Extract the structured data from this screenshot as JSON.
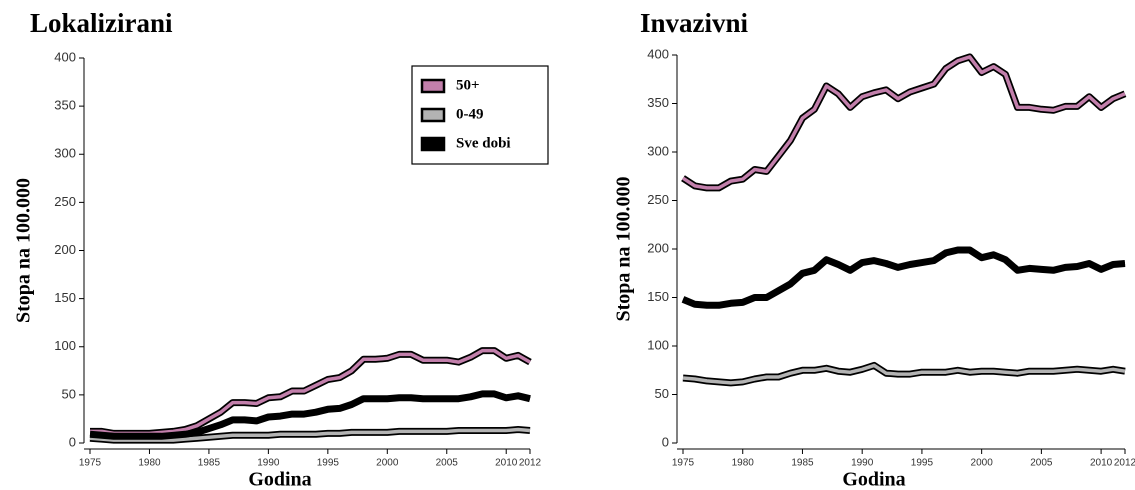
{
  "chart_data": [
    {
      "type": "line",
      "title": "Lokalizirani",
      "y_label": "Stopa na 100.000",
      "x_label": "Godina",
      "x": [
        1975,
        1976,
        1977,
        1978,
        1979,
        1980,
        1981,
        1982,
        1983,
        1984,
        1985,
        1986,
        1987,
        1988,
        1989,
        1990,
        1991,
        1992,
        1993,
        1994,
        1995,
        1996,
        1997,
        1998,
        1999,
        2000,
        2001,
        2002,
        2003,
        2004,
        2005,
        2006,
        2007,
        2008,
        2009,
        2010,
        2011,
        2012
      ],
      "xlim": [
        1975,
        2012
      ],
      "xticks": [
        1975,
        1980,
        1985,
        1990,
        1995,
        2000,
        2005,
        2010,
        2012
      ],
      "ylim": [
        0,
        400
      ],
      "yticks": [
        0,
        50,
        100,
        150,
        200,
        250,
        300,
        350,
        400
      ],
      "legend": "upper right",
      "series": [
        {
          "name": "50+",
          "color": "#c27fab",
          "values": [
            12,
            12,
            10,
            10,
            10,
            10,
            11,
            12,
            14,
            18,
            25,
            32,
            42,
            42,
            41,
            47,
            48,
            54,
            54,
            60,
            66,
            68,
            75,
            87,
            87,
            88,
            92,
            92,
            86,
            86,
            86,
            84,
            89,
            96,
            96,
            88,
            91,
            84
          ]
        },
        {
          "name": "0-49",
          "color": "#b3b3b3",
          "values": [
            5,
            4,
            3,
            3,
            3,
            3,
            3,
            3,
            4,
            5,
            6,
            7,
            8,
            8,
            8,
            8,
            9,
            9,
            9,
            9,
            10,
            10,
            11,
            11,
            11,
            11,
            12,
            12,
            12,
            12,
            12,
            13,
            13,
            13,
            13,
            13,
            14,
            13
          ]
        },
        {
          "name": "Sve dobi",
          "color": "#000000",
          "values": [
            9,
            8,
            7,
            7,
            7,
            7,
            7,
            8,
            9,
            11,
            15,
            19,
            24,
            24,
            23,
            27,
            28,
            30,
            30,
            32,
            35,
            36,
            40,
            46,
            46,
            46,
            47,
            47,
            46,
            46,
            46,
            46,
            48,
            51,
            51,
            47,
            49,
            46
          ]
        }
      ]
    },
    {
      "type": "line",
      "title": "Invazivni",
      "y_label": "Stopa na 100.000",
      "x_label": "Godina",
      "x": [
        1975,
        1976,
        1977,
        1978,
        1979,
        1980,
        1981,
        1982,
        1983,
        1984,
        1985,
        1986,
        1987,
        1988,
        1989,
        1990,
        1991,
        1992,
        1993,
        1994,
        1995,
        1996,
        1997,
        1998,
        1999,
        2000,
        2001,
        2002,
        2003,
        2004,
        2005,
        2006,
        2007,
        2008,
        2009,
        2010,
        2011,
        2012
      ],
      "xlim": [
        1975,
        2012
      ],
      "xticks": [
        1975,
        1980,
        1985,
        1990,
        1995,
        2000,
        2005,
        2010,
        2012
      ],
      "ylim": [
        0,
        400
      ],
      "yticks": [
        0,
        50,
        100,
        150,
        200,
        250,
        300,
        350,
        400
      ],
      "series": [
        {
          "name": "50+",
          "color": "#c27fab",
          "values": [
            273,
            265,
            263,
            263,
            270,
            272,
            282,
            280,
            296,
            312,
            335,
            344,
            368,
            360,
            346,
            357,
            361,
            364,
            355,
            362,
            366,
            370,
            386,
            394,
            398,
            382,
            388,
            380,
            346,
            346,
            344,
            343,
            347,
            347,
            357,
            346,
            355,
            360
          ]
        },
        {
          "name": "0-49",
          "color": "#b3b3b3",
          "values": [
            67,
            66,
            64,
            63,
            62,
            63,
            66,
            68,
            68,
            72,
            75,
            75,
            77,
            74,
            73,
            76,
            80,
            72,
            71,
            71,
            73,
            73,
            73,
            75,
            73,
            74,
            74,
            73,
            72,
            74,
            74,
            74,
            75,
            76,
            75,
            74,
            76,
            74
          ]
        },
        {
          "name": "Sve dobi",
          "color": "#000000",
          "values": [
            148,
            143,
            142,
            142,
            144,
            145,
            150,
            150,
            157,
            164,
            175,
            178,
            189,
            184,
            178,
            186,
            188,
            185,
            181,
            184,
            186,
            188,
            196,
            199,
            199,
            191,
            194,
            189,
            178,
            180,
            179,
            178,
            181,
            182,
            185,
            179,
            184,
            185
          ]
        }
      ]
    }
  ]
}
